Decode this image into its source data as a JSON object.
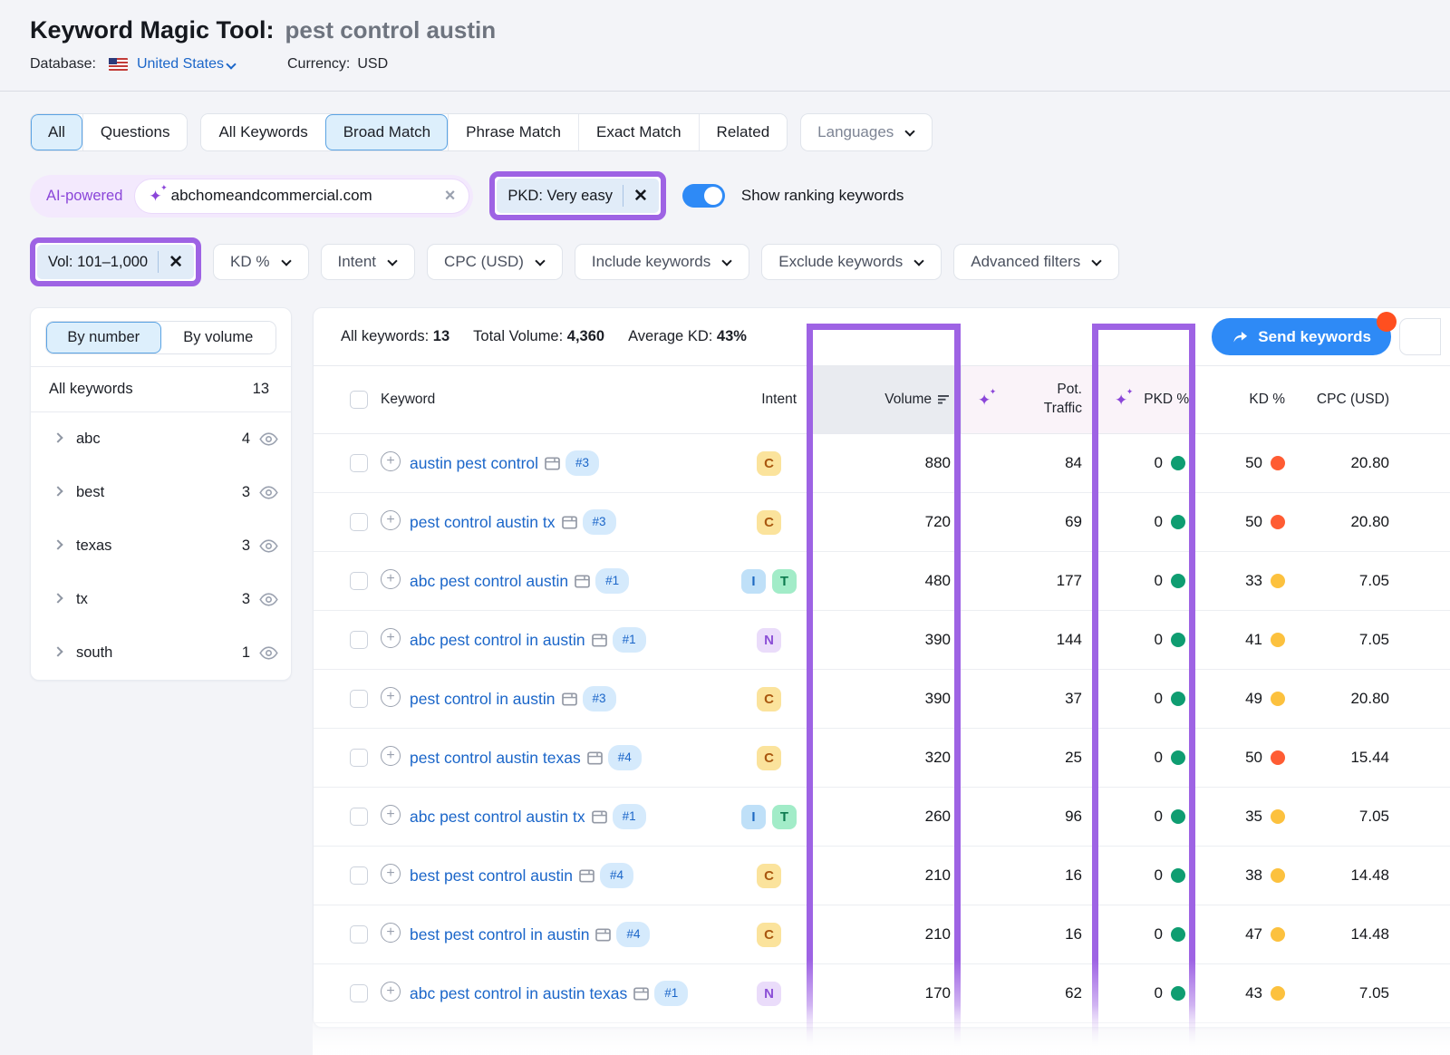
{
  "header": {
    "title": "Keyword Magic Tool:",
    "query": "pest control austin",
    "database_label": "Database:",
    "database_value": "United States",
    "currency_label": "Currency:",
    "currency_value": "USD"
  },
  "tabs": {
    "group1": [
      {
        "label": "All",
        "selected": true
      },
      {
        "label": "Questions",
        "selected": false
      }
    ],
    "group2": [
      {
        "label": "All Keywords",
        "selected": false
      },
      {
        "label": "Broad Match",
        "selected": true
      },
      {
        "label": "Phrase Match",
        "selected": false
      },
      {
        "label": "Exact Match",
        "selected": false
      },
      {
        "label": "Related",
        "selected": false
      }
    ],
    "languages_label": "Languages"
  },
  "ai_filter": {
    "label": "AI-powered",
    "domain_value": "abchomeandcommercial.com",
    "pkd_chip_label": "PKD: Very easy",
    "toggle_label": "Show ranking keywords",
    "toggle_on": true
  },
  "filters": {
    "volume_chip_label": "Vol: 101–1,000",
    "dropdowns": [
      "KD %",
      "Intent",
      "CPC (USD)",
      "Include keywords",
      "Exclude keywords",
      "Advanced filters"
    ]
  },
  "sidebar": {
    "tabs": [
      {
        "label": "By number",
        "selected": true
      },
      {
        "label": "By volume",
        "selected": false
      }
    ],
    "all_keywords_label": "All keywords",
    "all_keywords_count": "13",
    "groups": [
      {
        "label": "abc",
        "count": "4"
      },
      {
        "label": "best",
        "count": "3"
      },
      {
        "label": "texas",
        "count": "3"
      },
      {
        "label": "tx",
        "count": "3"
      },
      {
        "label": "south",
        "count": "1"
      }
    ]
  },
  "toolbar": {
    "stats": [
      {
        "label": "All keywords:",
        "value": "13"
      },
      {
        "label": "Total Volume:",
        "value": "4,360"
      },
      {
        "label": "Average KD:",
        "value": "43%"
      }
    ],
    "send_label": "Send keywords"
  },
  "table": {
    "columns": {
      "keyword": "Keyword",
      "intent": "Intent",
      "volume": "Volume",
      "pot_traffic_line1": "Pot.",
      "pot_traffic_line2": "Traffic",
      "pkd": "PKD %",
      "kd": "KD %",
      "cpc": "CPC (USD)"
    },
    "rows": [
      {
        "keyword": "austin pest control",
        "rank": "#3",
        "intents": [
          "C"
        ],
        "volume": "880",
        "pot_traffic": "84",
        "pkd": "0",
        "kd": "50",
        "kd_dot": "red",
        "cpc": "20.80"
      },
      {
        "keyword": "pest control austin tx",
        "rank": "#3",
        "intents": [
          "C"
        ],
        "volume": "720",
        "pot_traffic": "69",
        "pkd": "0",
        "kd": "50",
        "kd_dot": "red",
        "cpc": "20.80"
      },
      {
        "keyword": "abc pest control austin",
        "rank": "#1",
        "intents": [
          "I",
          "T"
        ],
        "volume": "480",
        "pot_traffic": "177",
        "pkd": "0",
        "kd": "33",
        "kd_dot": "yellow",
        "cpc": "7.05"
      },
      {
        "keyword": "abc pest control in austin",
        "rank": "#1",
        "intents": [
          "N"
        ],
        "volume": "390",
        "pot_traffic": "144",
        "pkd": "0",
        "kd": "41",
        "kd_dot": "yellow",
        "cpc": "7.05"
      },
      {
        "keyword": "pest control in austin",
        "rank": "#3",
        "intents": [
          "C"
        ],
        "volume": "390",
        "pot_traffic": "37",
        "pkd": "0",
        "kd": "49",
        "kd_dot": "yellow",
        "cpc": "20.80"
      },
      {
        "keyword": "pest control austin texas",
        "rank": "#4",
        "intents": [
          "C"
        ],
        "volume": "320",
        "pot_traffic": "25",
        "pkd": "0",
        "kd": "50",
        "kd_dot": "red",
        "cpc": "15.44"
      },
      {
        "keyword": "abc pest control austin tx",
        "rank": "#1",
        "intents": [
          "I",
          "T"
        ],
        "volume": "260",
        "pot_traffic": "96",
        "pkd": "0",
        "kd": "35",
        "kd_dot": "yellow",
        "cpc": "7.05"
      },
      {
        "keyword": "best pest control austin",
        "rank": "#4",
        "intents": [
          "C"
        ],
        "volume": "210",
        "pot_traffic": "16",
        "pkd": "0",
        "kd": "38",
        "kd_dot": "yellow",
        "cpc": "14.48"
      },
      {
        "keyword": "best pest control in austin",
        "rank": "#4",
        "intents": [
          "C"
        ],
        "volume": "210",
        "pot_traffic": "16",
        "pkd": "0",
        "kd": "47",
        "kd_dot": "yellow",
        "cpc": "14.48"
      },
      {
        "keyword": "abc pest control in austin texas",
        "rank": "#1",
        "intents": [
          "N"
        ],
        "volume": "170",
        "pot_traffic": "62",
        "pkd": "0",
        "kd": "43",
        "kd_dot": "yellow",
        "cpc": "7.05"
      }
    ]
  },
  "colors": {
    "accent_blue": "#2e8af6",
    "link_blue": "#1b66c9",
    "highlight_purple": "#9e63e4",
    "ai_purple": "#8b46d9",
    "notification_orange": "#ff4f1f",
    "pkd_dot_green": "#0f9d71",
    "kd_dot_red": "#ff5c33",
    "kd_dot_yellow": "#fcc13e",
    "intent": {
      "C": {
        "bg": "#fbe39c",
        "fg": "#a9570f"
      },
      "I": {
        "bg": "#bfe0f8",
        "fg": "#1f6ac2"
      },
      "T": {
        "bg": "#a2ecc8",
        "fg": "#0c7a4e"
      },
      "N": {
        "bg": "#eadcfa",
        "fg": "#8b4fd6"
      }
    }
  },
  "icons": [
    "us-flag-icon",
    "chevron-down-icon",
    "chevron-right-icon",
    "ai-sparkle-icon",
    "clear-icon",
    "close-icon",
    "toggle-switch",
    "eye-icon",
    "sort-descending-icon",
    "plus-circle-icon",
    "serp-features-icon",
    "send-arrow-icon",
    "notification-dot",
    "kd-difficulty-dot",
    "pkd-difficulty-dot",
    "checkbox"
  ]
}
